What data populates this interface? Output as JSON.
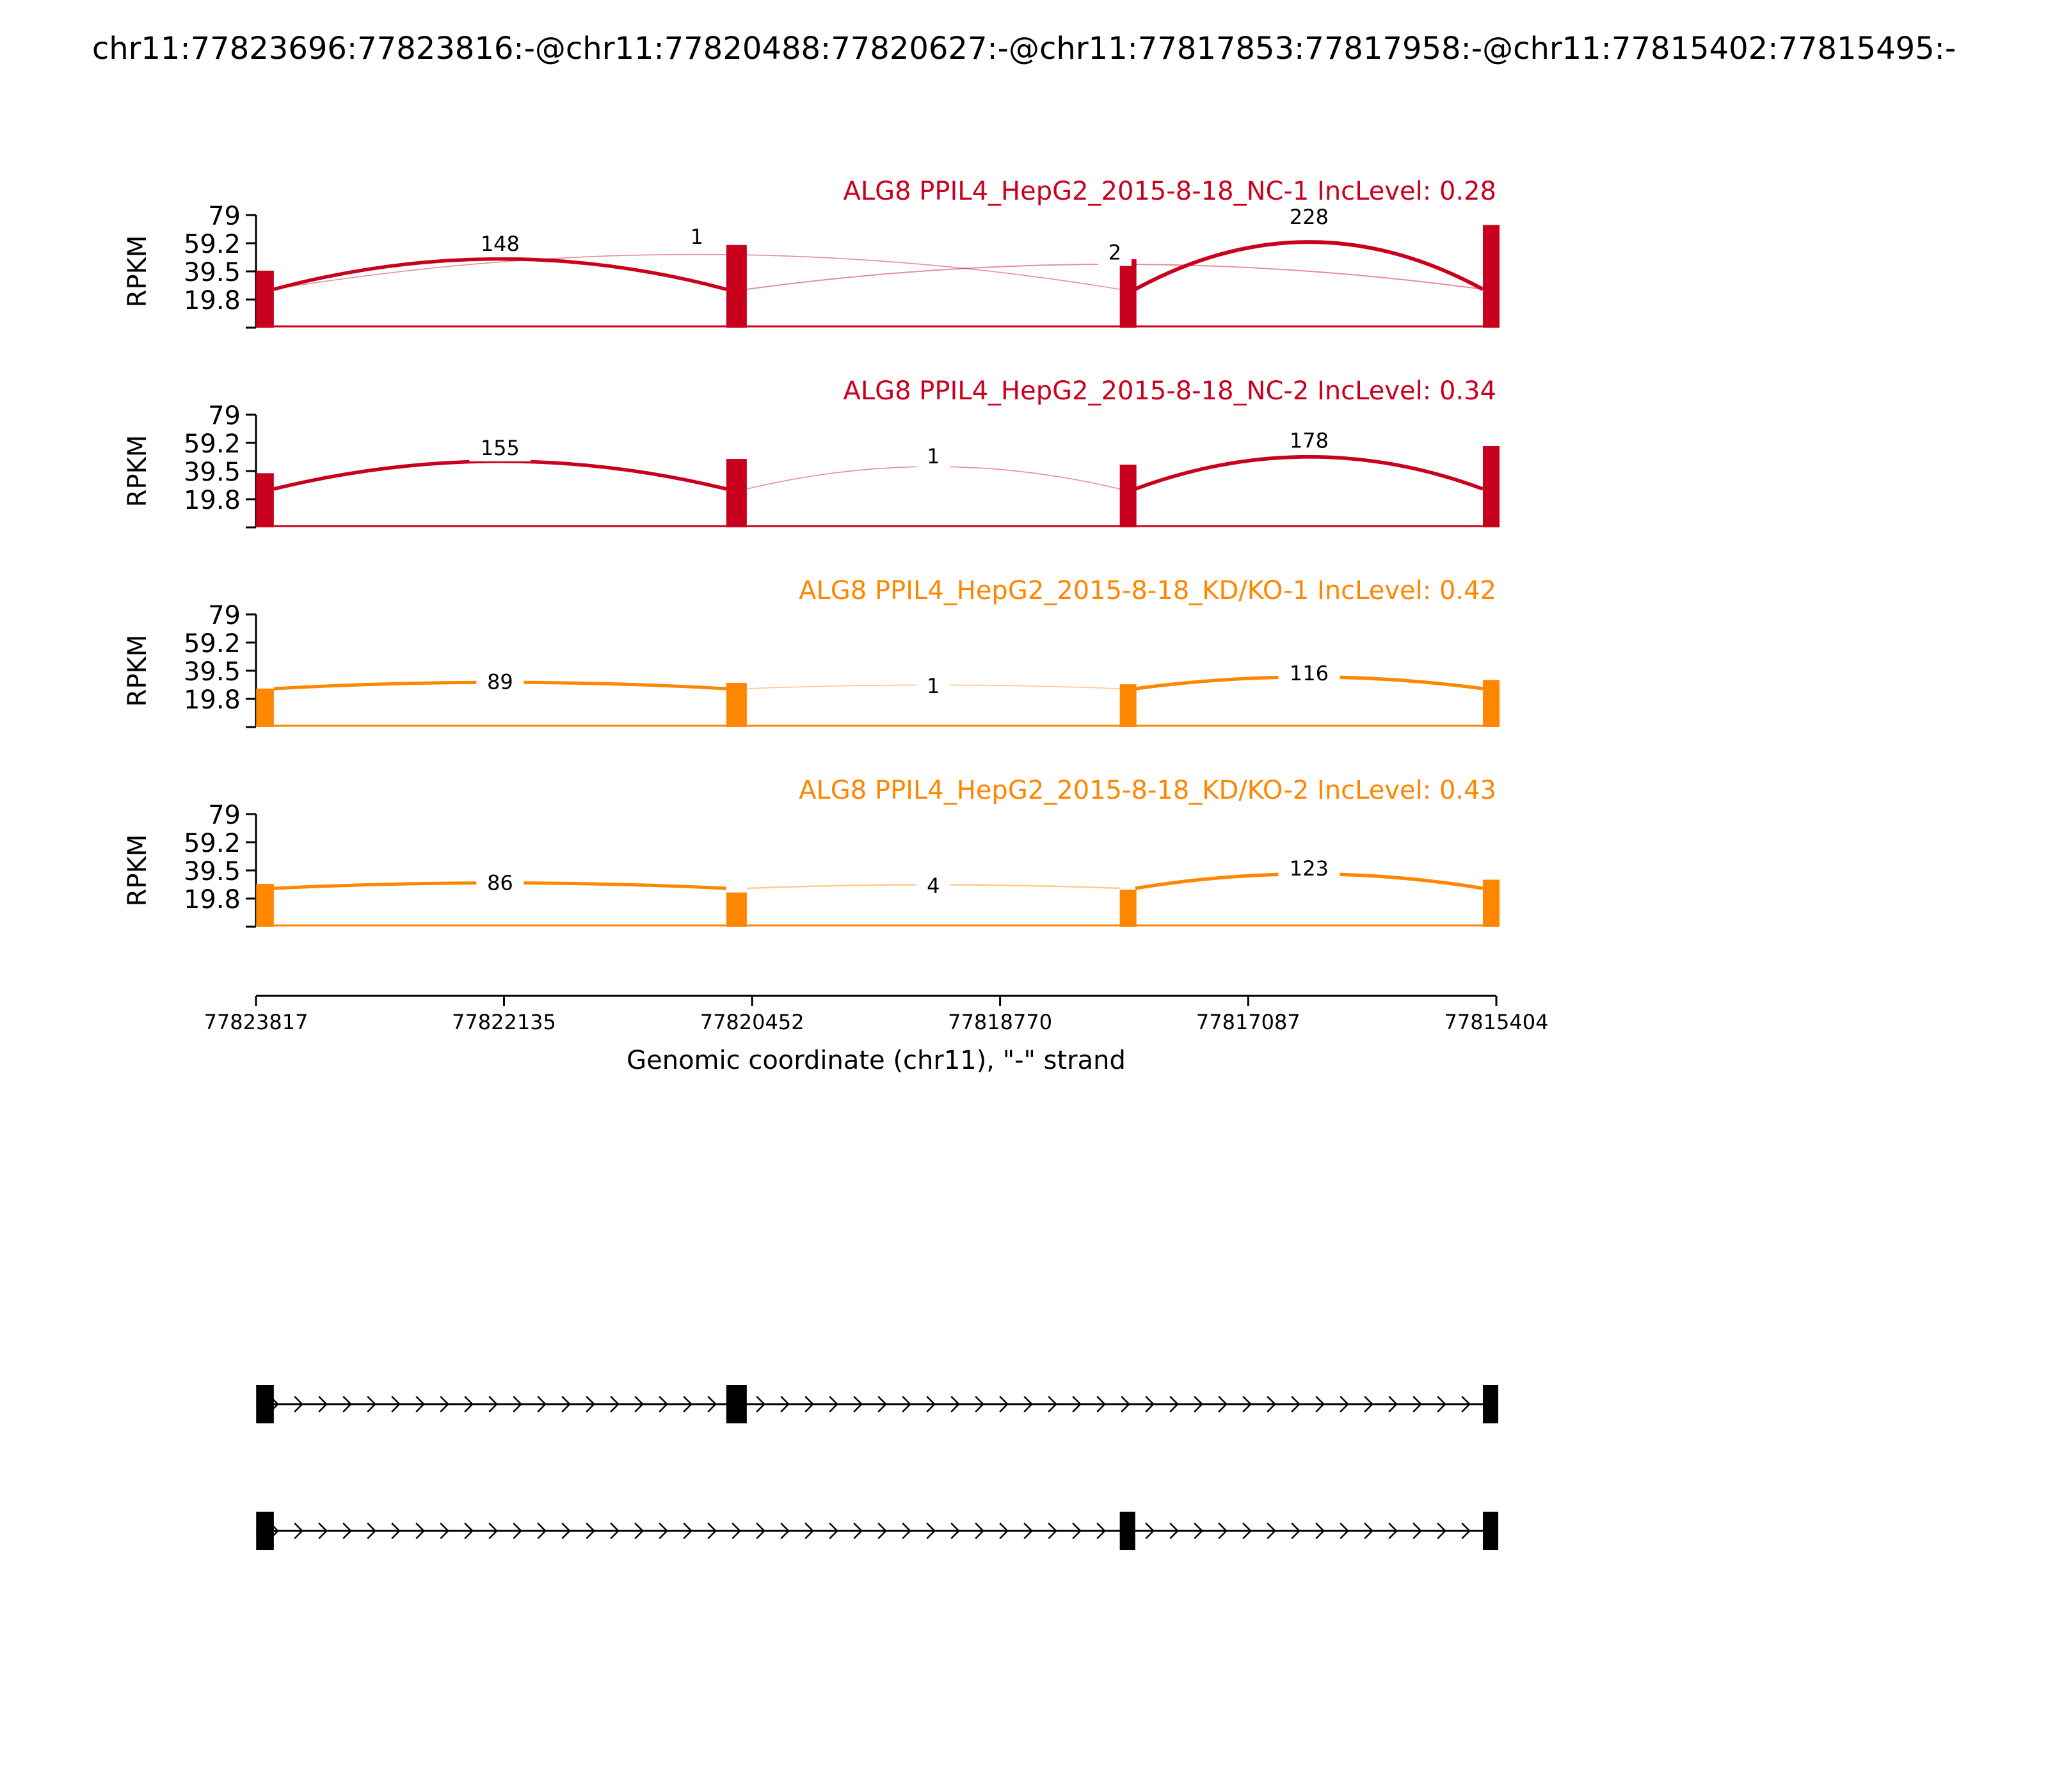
{
  "figure_title": "chr11:77823696:77823816:-@chr11:77820488:77820627:-@chr11:77817853:77817958:-@chr11:77815402:77815495:-",
  "chart_data": {
    "type": "sashimi",
    "ylabel": "RPKM",
    "ylim": [
      0,
      79
    ],
    "yticks": [
      "79",
      "59.2",
      "39.5",
      "19.8"
    ],
    "xlabel": "Genomic coordinate (chr11), \"-\" strand",
    "xlim": [
      77823817,
      77815404
    ],
    "xticks": [
      "77823817",
      "77822135",
      "77820452",
      "77818770",
      "77817087",
      "77815404"
    ],
    "exons": [
      {
        "start": 77823816,
        "end": 77823696
      },
      {
        "start": 77820627,
        "end": 77820488
      },
      {
        "start": 77817958,
        "end": 77817853
      },
      {
        "start": 77815495,
        "end": 77815404
      }
    ],
    "tracks": [
      {
        "name": "ALG8 PPIL4_HepG2_2015-8-18_NC-1 IncLevel: 0.28",
        "color": "#c8001e",
        "exon_peaks": [
          40,
          58,
          48,
          72
        ],
        "junctions": [
          {
            "from": 77823696,
            "to": 77820627,
            "count": "148",
            "height": 61
          },
          {
            "from": 77820488,
            "to": 77815495,
            "count": "2",
            "height": 55
          },
          {
            "from": 77823696,
            "to": 77817958,
            "count": "1",
            "height": 66
          },
          {
            "from": 77817853,
            "to": 77815495,
            "count": "228",
            "height": 80
          }
        ]
      },
      {
        "name": "ALG8 PPIL4_HepG2_2015-8-18_NC-2 IncLevel: 0.34",
        "color": "#c8001e",
        "exon_peaks": [
          38,
          48,
          44,
          57
        ],
        "junctions": [
          {
            "from": 77823696,
            "to": 77820627,
            "count": "155",
            "height": 58
          },
          {
            "from": 77820488,
            "to": 77817958,
            "count": "1",
            "height": 52
          },
          {
            "from": 77817853,
            "to": 77815495,
            "count": "178",
            "height": 63
          }
        ]
      },
      {
        "name": "ALG8 PPIL4_HepG2_2015-8-18_KD/KO-1 IncLevel: 0.42",
        "color": "#ff8600",
        "exon_peaks": [
          27,
          31,
          30,
          33
        ],
        "junctions": [
          {
            "from": 77823696,
            "to": 77820627,
            "count": "89",
            "height": 34
          },
          {
            "from": 77820488,
            "to": 77817958,
            "count": "1",
            "height": 31
          },
          {
            "from": 77817853,
            "to": 77815495,
            "count": "116",
            "height": 40
          }
        ]
      },
      {
        "name": "ALG8 PPIL4_HepG2_2015-8-18_KD/KO-2 IncLevel: 0.43",
        "color": "#ff8600",
        "exon_peaks": [
          30,
          24,
          26,
          33
        ],
        "junctions": [
          {
            "from": 77823696,
            "to": 77820627,
            "count": "86",
            "height": 33
          },
          {
            "from": 77820488,
            "to": 77817958,
            "count": "4",
            "height": 31
          },
          {
            "from": 77817853,
            "to": 77815495,
            "count": "123",
            "height": 43
          }
        ]
      }
    ],
    "isoforms": [
      [
        0,
        1,
        3
      ],
      [
        0,
        2,
        3
      ]
    ]
  }
}
